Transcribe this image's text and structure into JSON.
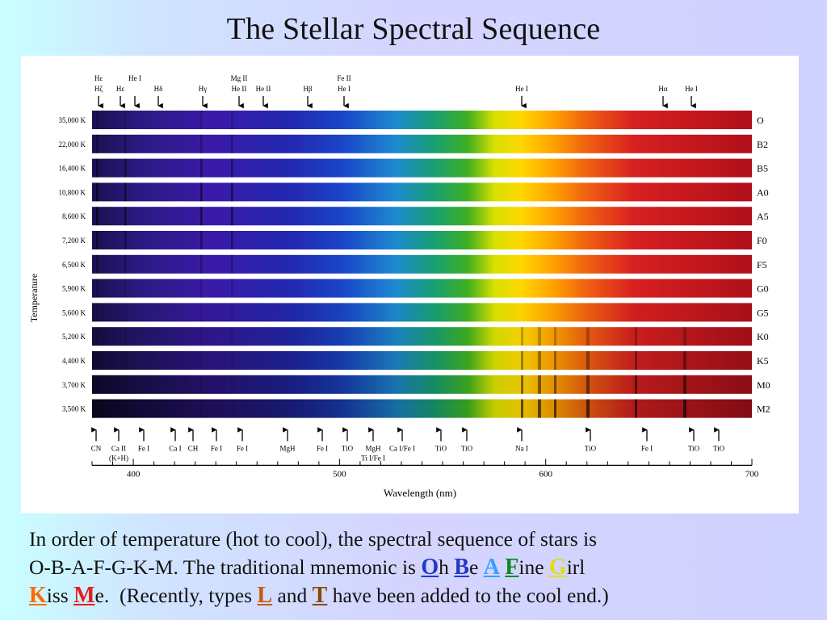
{
  "title": "The Stellar Spectral Sequence",
  "colors": {
    "o": "#1f3bc4",
    "b": "#1f3bc4",
    "a": "#3aa0ff",
    "f": "#0a8a1a",
    "g": "#e8e800",
    "k": "#ff6a00",
    "m": "#e61e1e",
    "l": "#c85a00",
    "t": "#8a4a00"
  },
  "figure": {
    "ylabel": "Temperature",
    "xlabel": "Wavelength (nm)",
    "x_ticks": [
      "400",
      "500",
      "600",
      "700"
    ],
    "spectra": [
      {
        "temp": "35,000 K",
        "type": "O"
      },
      {
        "temp": "22,000 K",
        "type": "B2"
      },
      {
        "temp": "16,400 K",
        "type": "B5"
      },
      {
        "temp": "10,800 K",
        "type": "A0"
      },
      {
        "temp": "8,600 K",
        "type": "A5"
      },
      {
        "temp": "7,200 K",
        "type": "F0"
      },
      {
        "temp": "6,500 K",
        "type": "F5"
      },
      {
        "temp": "5,900 K",
        "type": "G0"
      },
      {
        "temp": "5,600 K",
        "type": "G5"
      },
      {
        "temp": "5,200 K",
        "type": "K0"
      },
      {
        "temp": "4,400 K",
        "type": "K5"
      },
      {
        "temp": "3,700 K",
        "type": "M0"
      },
      {
        "temp": "3,500 K",
        "type": "M2"
      }
    ],
    "top_lines": [
      {
        "top": "Hε",
        "bottom": "Hζ"
      },
      {
        "top": "He I",
        "bottom": ""
      },
      {
        "top": "",
        "bottom": "Hε"
      },
      {
        "top": "",
        "bottom": "Hδ"
      },
      {
        "top": "",
        "bottom": "Hγ"
      },
      {
        "top": "Mg II",
        "bottom": "He II"
      },
      {
        "top": "",
        "bottom": "He II"
      },
      {
        "top": "",
        "bottom": "Hβ"
      },
      {
        "top": "Fe II",
        "bottom": "He I"
      },
      {
        "top": "",
        "bottom": "He I"
      },
      {
        "top": "",
        "bottom": "Hα"
      },
      {
        "top": "",
        "bottom": "He I"
      }
    ],
    "bottom_lines": [
      {
        "label": "CN",
        "sub": ""
      },
      {
        "label": "Ca II",
        "sub": "(K+H)"
      },
      {
        "label": "Fe I",
        "sub": ""
      },
      {
        "label": "Ca I",
        "sub": ""
      },
      {
        "label": "CH",
        "sub": ""
      },
      {
        "label": "Fe I",
        "sub": ""
      },
      {
        "label": "Fe I",
        "sub": ""
      },
      {
        "label": "MgH",
        "sub": ""
      },
      {
        "label": "Fe I",
        "sub": ""
      },
      {
        "label": "TiO",
        "sub": ""
      },
      {
        "label": "MgH",
        "sub": "Ti I/Fe I"
      },
      {
        "label": "Ca I/Fe I",
        "sub": ""
      },
      {
        "label": "TiO",
        "sub": ""
      },
      {
        "label": "TiO",
        "sub": ""
      },
      {
        "label": "Na I",
        "sub": ""
      },
      {
        "label": "TiO",
        "sub": ""
      },
      {
        "label": "Fe I",
        "sub": ""
      },
      {
        "label": "TiO",
        "sub": ""
      },
      {
        "label": "TiO",
        "sub": ""
      }
    ]
  },
  "caption": {
    "line1": "In order of temperature (hot to cool), the spectral sequence of stars is",
    "line2_prefix": "O-B-A-F-G-K-M.  The traditional mnemonic is ",
    "w_oh_1": "O",
    "w_oh_2": "h",
    "w_be_1": "B",
    "w_be_2": "e",
    "w_a": "A",
    "w_fine_1": "F",
    "w_fine_2": "ine",
    "w_girl_1": "G",
    "w_girl_2": "irl",
    "w_kiss_1": "K",
    "w_kiss_2": "iss",
    "w_me_1": "M",
    "w_me_2": "e.",
    "mid": "  (Recently, types ",
    "w_l": "L",
    "and": " and ",
    "w_t": "T",
    "end": " have been added to the cool end.)"
  }
}
